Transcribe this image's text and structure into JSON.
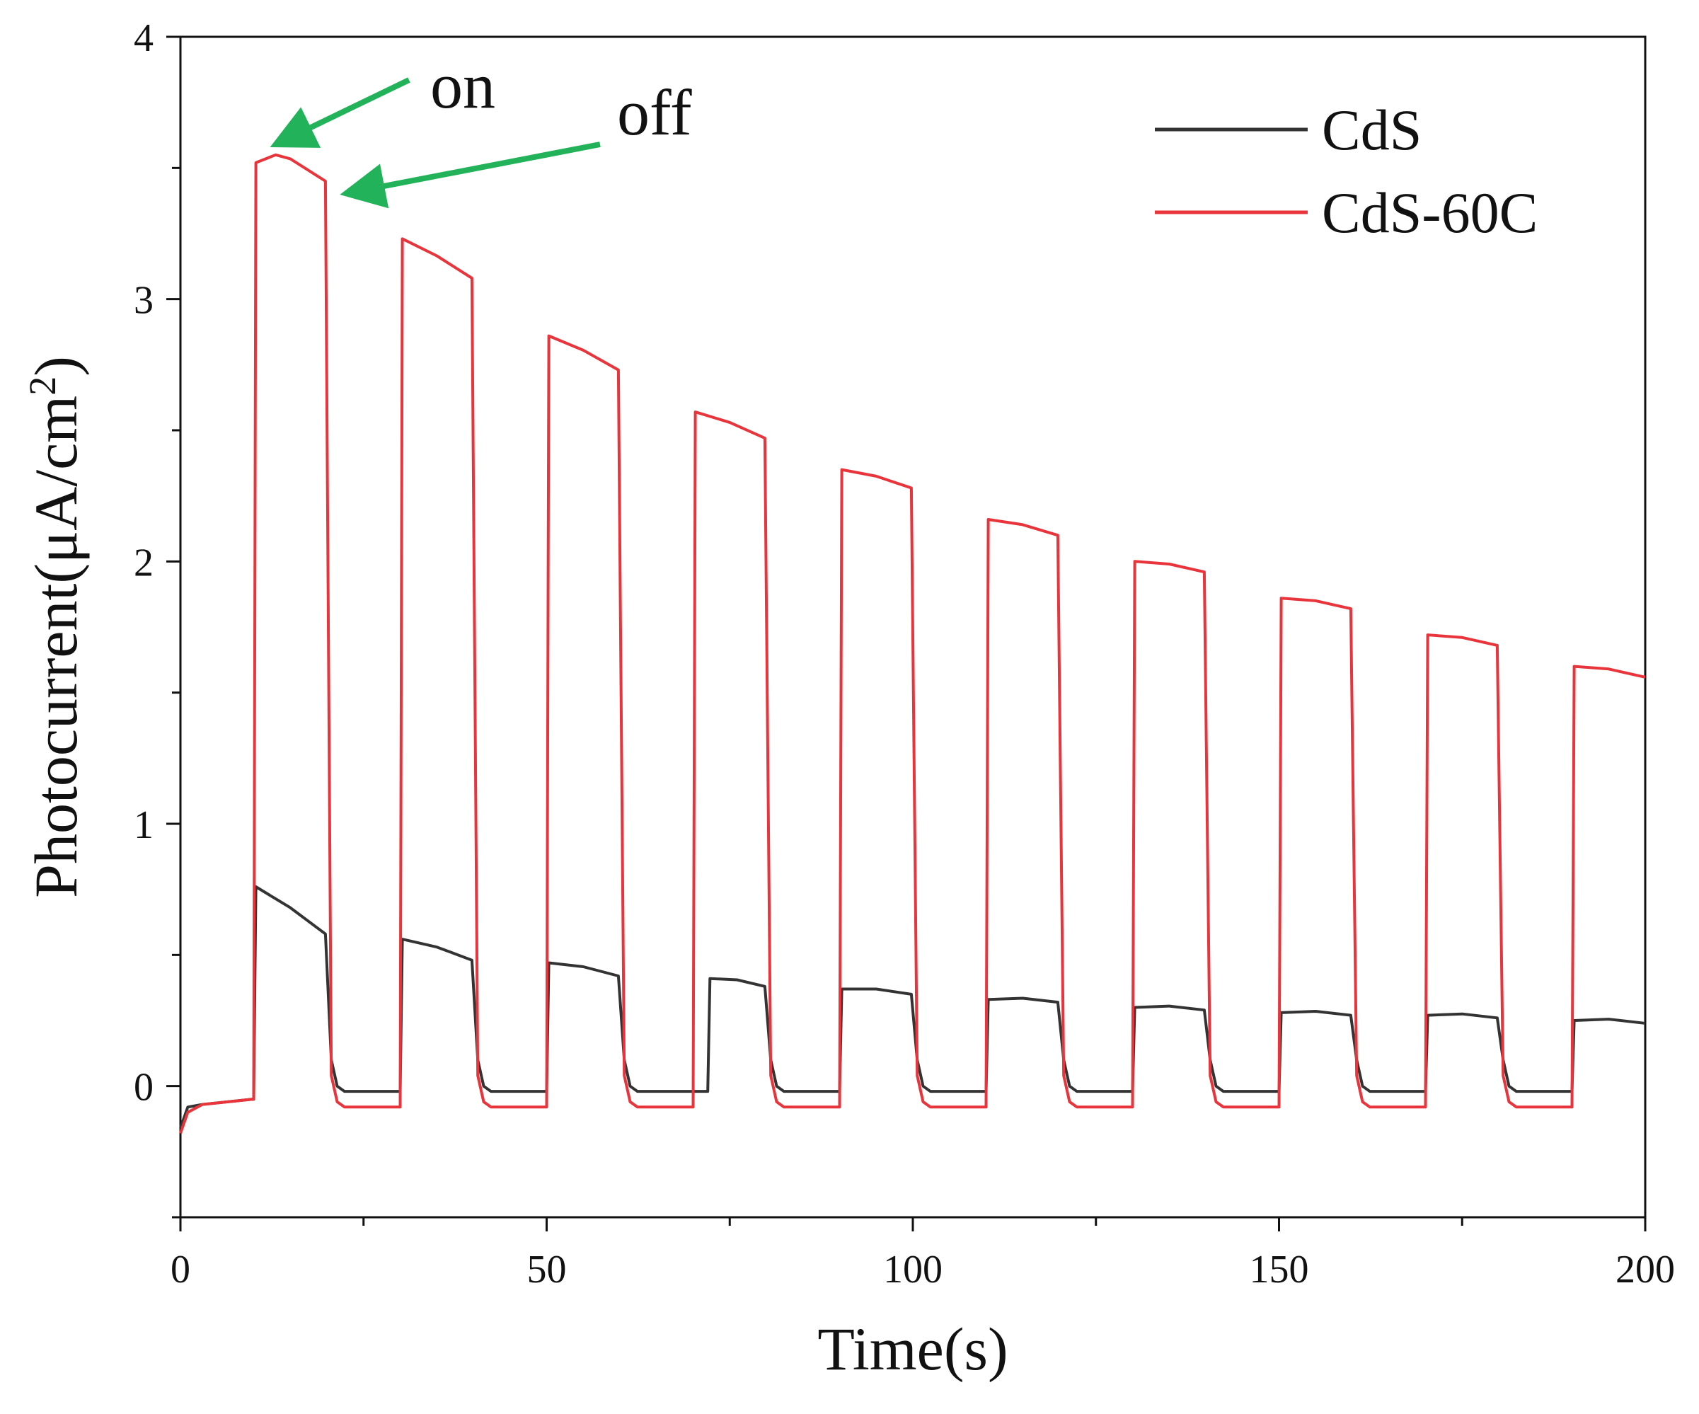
{
  "chart_data": {
    "type": "line",
    "xlabel": "Time(s)",
    "ylabel_main": "Photocurrent(μA/cm",
    "ylabel_sup": "2",
    "ylabel_close": ")",
    "xlim": [
      0,
      200
    ],
    "ylim": [
      -0.5,
      4
    ],
    "x_ticks": [
      0,
      50,
      100,
      150,
      200
    ],
    "x_tick_labels": [
      "0",
      "50",
      "100",
      "150",
      "200"
    ],
    "x_minor_ticks": [
      25,
      75,
      125,
      175
    ],
    "y_ticks": [
      0,
      1,
      2,
      3,
      4
    ],
    "y_tick_labels": [
      "0",
      "1",
      "2",
      "3",
      "4"
    ],
    "grid": false,
    "legend_position": "top-right",
    "legend": [
      {
        "label": "CdS",
        "color": "#333333"
      },
      {
        "label": "CdS-60C",
        "color": "#e8343a"
      }
    ],
    "series": [
      {
        "name": "CdS",
        "color": "#333333",
        "cycles": [
          {
            "on": 10,
            "off": 20,
            "start": 0.76,
            "end": 0.58
          },
          {
            "on": 30,
            "off": 40,
            "start": 0.56,
            "end": 0.48
          },
          {
            "on": 50,
            "off": 60,
            "start": 0.47,
            "end": 0.42
          },
          {
            "on": 72,
            "off": 80,
            "start": 0.41,
            "end": 0.38
          },
          {
            "on": 90,
            "off": 100,
            "start": 0.37,
            "end": 0.35
          },
          {
            "on": 110,
            "off": 120,
            "start": 0.33,
            "end": 0.32
          },
          {
            "on": 130,
            "off": 140,
            "start": 0.3,
            "end": 0.29
          },
          {
            "on": 150,
            "off": 160,
            "start": 0.28,
            "end": 0.27
          },
          {
            "on": 170,
            "off": 180,
            "start": 0.27,
            "end": 0.26
          },
          {
            "on": 190,
            "off": 200,
            "start": 0.25,
            "end": 0.24
          }
        ],
        "dark_baseline": -0.02,
        "initial_value": -0.16,
        "initial_plateau": -0.05
      },
      {
        "name": "CdS-60C",
        "color": "#e8343a",
        "cycles": [
          {
            "on": 10,
            "off": 20,
            "start": 3.52,
            "peak": 3.55,
            "end": 3.45
          },
          {
            "on": 30,
            "off": 40,
            "start": 3.23,
            "end": 3.08
          },
          {
            "on": 50,
            "off": 60,
            "start": 2.86,
            "end": 2.73
          },
          {
            "on": 70,
            "off": 80,
            "start": 2.57,
            "end": 2.47
          },
          {
            "on": 90,
            "off": 100,
            "start": 2.35,
            "end": 2.28
          },
          {
            "on": 110,
            "off": 120,
            "start": 2.16,
            "end": 2.1
          },
          {
            "on": 130,
            "off": 140,
            "start": 2.0,
            "end": 1.96
          },
          {
            "on": 150,
            "off": 160,
            "start": 1.86,
            "end": 1.82
          },
          {
            "on": 170,
            "off": 180,
            "start": 1.72,
            "end": 1.68
          },
          {
            "on": 190,
            "off": 200,
            "start": 1.6,
            "end": 1.56
          }
        ],
        "dark_baseline": -0.08,
        "initial_value": -0.18,
        "initial_plateau": -0.05
      }
    ],
    "annotations": [
      {
        "text": "on",
        "points_to_x": 13,
        "points_to_y": 3.6,
        "color": "#22b35a"
      },
      {
        "text": "off",
        "points_to_x": 22,
        "points_to_y": 3.45,
        "color": "#22b35a"
      }
    ]
  }
}
